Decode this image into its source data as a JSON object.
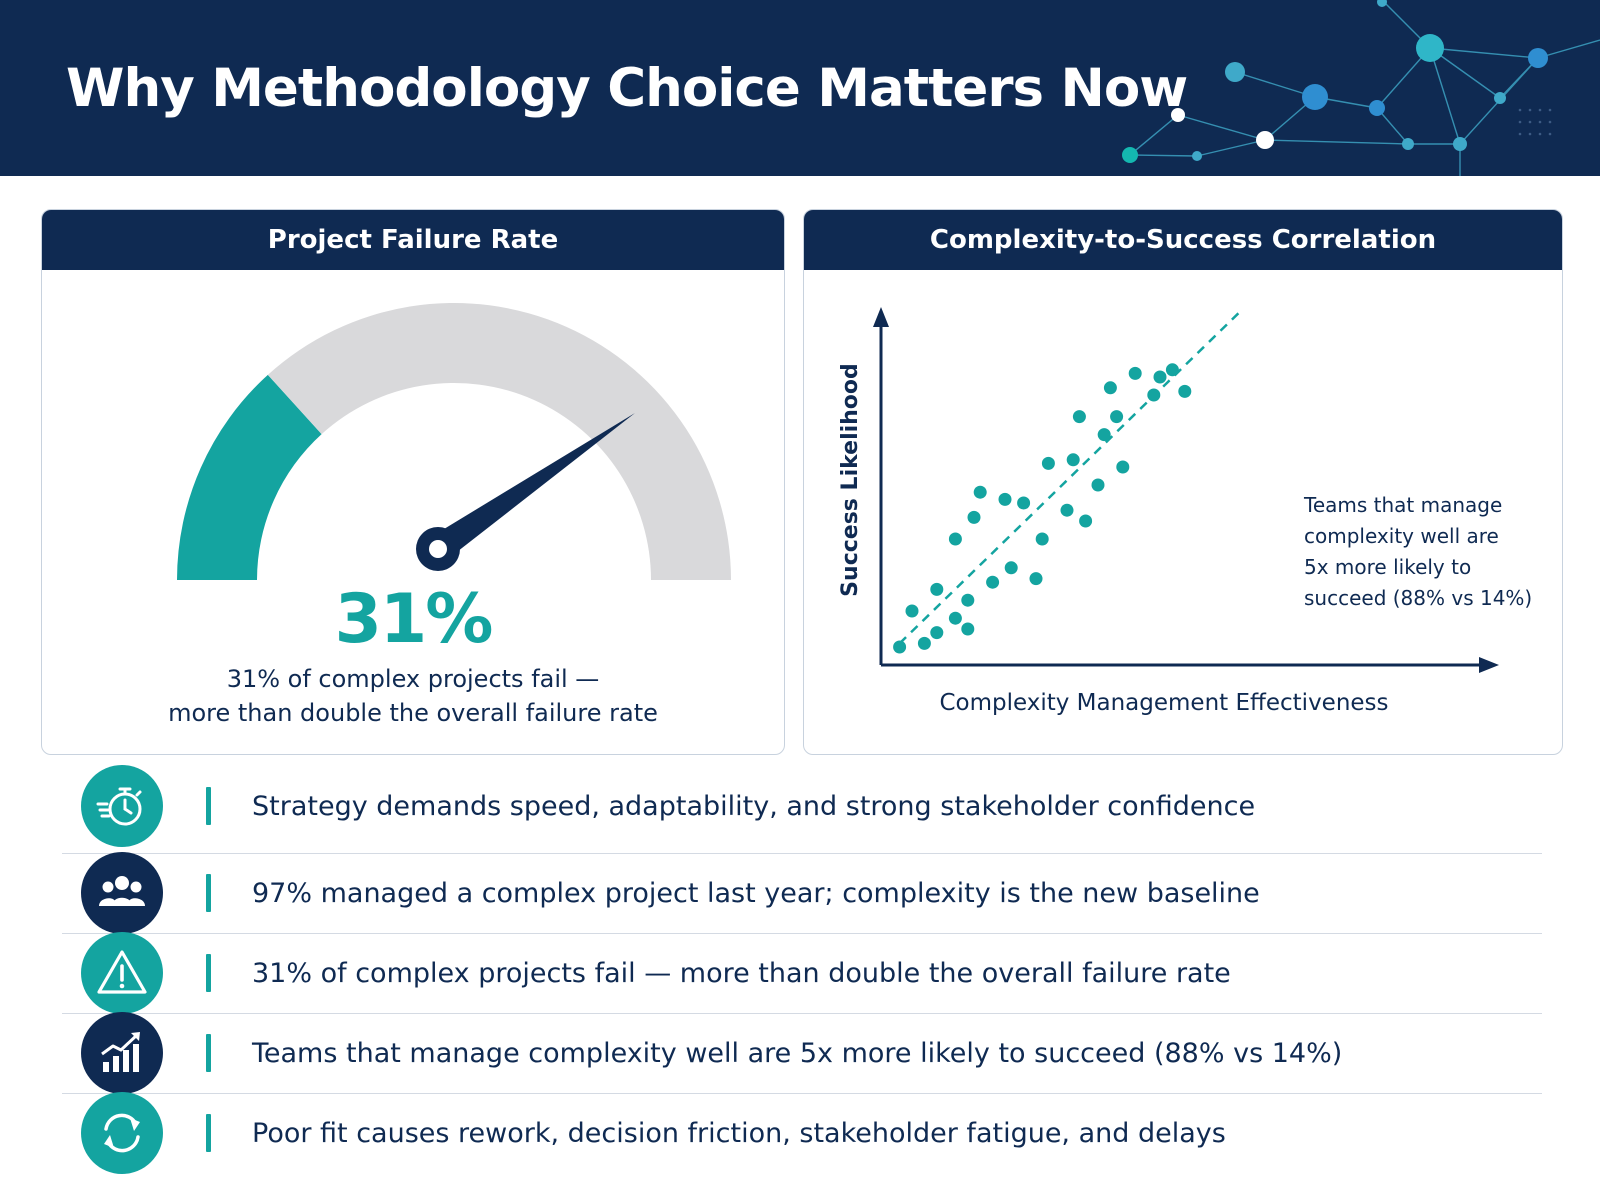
{
  "header": {
    "title": "Why Methodology Choice Matters Now"
  },
  "colors": {
    "navy": "#0f2a52",
    "teal": "#14a4a0",
    "gray": "#d9d9db",
    "divider": "#d4dae3"
  },
  "failure_card": {
    "title": "Project Failure Rate",
    "value_label": "31%",
    "caption_lines": [
      "31% of complex projects fail —",
      "more than double the overall failure rate"
    ]
  },
  "correlation_card": {
    "title": "Complexity-to-Success Correlation",
    "annotation_lines": [
      "Teams that manage",
      "complexity well are",
      "5x more likely to",
      "succeed (88% vs 14%)"
    ]
  },
  "chart_data": [
    {
      "type": "gauge",
      "value": 31,
      "scale_percent": [
        0,
        100
      ]
    },
    {
      "type": "scatter",
      "xlabel": "Complexity Management Effectiveness",
      "ylabel": "Success Likelihood",
      "xlim": [
        0,
        10
      ],
      "ylim": [
        0,
        10
      ],
      "grid": false,
      "trendline": "dashed linear fit",
      "points": [
        {
          "x": 0.3,
          "y": 0.5
        },
        {
          "x": 0.5,
          "y": 1.5
        },
        {
          "x": 0.7,
          "y": 0.6
        },
        {
          "x": 0.9,
          "y": 0.9
        },
        {
          "x": 0.9,
          "y": 2.1
        },
        {
          "x": 1.2,
          "y": 1.3
        },
        {
          "x": 1.2,
          "y": 3.5
        },
        {
          "x": 1.4,
          "y": 1.0
        },
        {
          "x": 1.4,
          "y": 1.8
        },
        {
          "x": 1.5,
          "y": 4.1
        },
        {
          "x": 1.6,
          "y": 4.8
        },
        {
          "x": 1.8,
          "y": 2.3
        },
        {
          "x": 2.0,
          "y": 4.6
        },
        {
          "x": 2.1,
          "y": 2.7
        },
        {
          "x": 2.3,
          "y": 4.5
        },
        {
          "x": 2.5,
          "y": 2.4
        },
        {
          "x": 2.6,
          "y": 3.5
        },
        {
          "x": 2.7,
          "y": 5.6
        },
        {
          "x": 3.0,
          "y": 4.3
        },
        {
          "x": 3.1,
          "y": 5.7
        },
        {
          "x": 3.2,
          "y": 6.9
        },
        {
          "x": 3.3,
          "y": 4.0
        },
        {
          "x": 3.5,
          "y": 5.0
        },
        {
          "x": 3.6,
          "y": 6.4
        },
        {
          "x": 3.7,
          "y": 7.7
        },
        {
          "x": 3.8,
          "y": 6.9
        },
        {
          "x": 3.9,
          "y": 5.5
        },
        {
          "x": 4.1,
          "y": 8.1
        },
        {
          "x": 4.4,
          "y": 7.5
        },
        {
          "x": 4.5,
          "y": 8.0
        },
        {
          "x": 4.7,
          "y": 8.2
        },
        {
          "x": 4.9,
          "y": 7.6
        }
      ]
    }
  ],
  "bullets": [
    {
      "icon": "stopwatch-icon",
      "text": "Strategy demands speed, adaptability, and strong stakeholder confidence"
    },
    {
      "icon": "people-icon",
      "text": "97% managed a complex project last year; complexity is the new baseline"
    },
    {
      "icon": "warning-icon",
      "text": "31% of complex projects fail — more than double the overall failure rate"
    },
    {
      "icon": "growth-chart-icon",
      "text": "Teams that manage complexity well are 5x more likely to succeed (88% vs 14%)"
    },
    {
      "icon": "refresh-icon",
      "text": "Poor fit causes rework, decision friction, stakeholder fatigue, and delays"
    }
  ]
}
